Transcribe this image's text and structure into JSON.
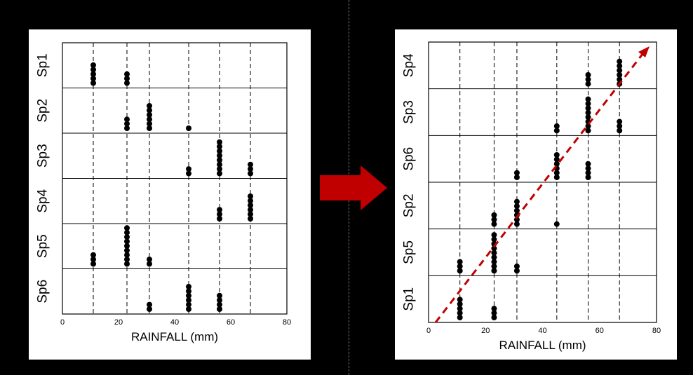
{
  "chart_data": [
    {
      "type": "scatter",
      "xlabel": "RAINFALL (mm)",
      "xlim": [
        0,
        80
      ],
      "xticks": [
        "0",
        "20",
        "40",
        "60",
        "80"
      ],
      "reference_lines_x": [
        11,
        23,
        31,
        45,
        56,
        67
      ],
      "rows": [
        {
          "label": "Sp1",
          "points": [
            {
              "x": 11,
              "count": 5
            },
            {
              "x": 23,
              "count": 3
            }
          ]
        },
        {
          "label": "Sp2",
          "points": [
            {
              "x": 23,
              "count": 3
            },
            {
              "x": 31,
              "count": 6
            },
            {
              "x": 45,
              "count": 1
            }
          ]
        },
        {
          "label": "Sp3",
          "points": [
            {
              "x": 45,
              "count": 2
            },
            {
              "x": 56,
              "count": 8
            },
            {
              "x": 67,
              "count": 3
            }
          ]
        },
        {
          "label": "Sp4",
          "points": [
            {
              "x": 56,
              "count": 3
            },
            {
              "x": 67,
              "count": 6
            }
          ]
        },
        {
          "label": "Sp5",
          "points": [
            {
              "x": 11,
              "count": 3
            },
            {
              "x": 23,
              "count": 9
            },
            {
              "x": 31,
              "count": 2
            }
          ]
        },
        {
          "label": "Sp6",
          "points": [
            {
              "x": 31,
              "count": 2
            },
            {
              "x": 45,
              "count": 6
            },
            {
              "x": 56,
              "count": 4
            }
          ]
        }
      ]
    },
    {
      "type": "scatter",
      "xlabel": "RAINFALL (mm)",
      "xlim": [
        0,
        80
      ],
      "xticks": [
        "0",
        "20",
        "40",
        "60",
        "80"
      ],
      "reference_lines_x": [
        11,
        23,
        31,
        45,
        56,
        67
      ],
      "trend_line": {
        "color": "#c00000",
        "style": "dashed",
        "direction": "rising"
      },
      "rows": [
        {
          "label": "Sp4",
          "points": [
            {
              "x": 56,
              "count": 3
            },
            {
              "x": 67,
              "count": 6
            }
          ]
        },
        {
          "label": "Sp3",
          "points": [
            {
              "x": 45,
              "count": 2
            },
            {
              "x": 56,
              "count": 8
            },
            {
              "x": 67,
              "count": 3
            }
          ]
        },
        {
          "label": "Sp6",
          "points": [
            {
              "x": 31,
              "count": 2
            },
            {
              "x": 45,
              "count": 6
            },
            {
              "x": 56,
              "count": 4
            }
          ]
        },
        {
          "label": "Sp2",
          "points": [
            {
              "x": 23,
              "count": 3
            },
            {
              "x": 31,
              "count": 6
            },
            {
              "x": 45,
              "count": 1
            }
          ]
        },
        {
          "label": "Sp5",
          "points": [
            {
              "x": 11,
              "count": 3
            },
            {
              "x": 23,
              "count": 9
            },
            {
              "x": 31,
              "count": 2
            }
          ]
        },
        {
          "label": "Sp1",
          "points": [
            {
              "x": 11,
              "count": 5
            },
            {
              "x": 23,
              "count": 3
            }
          ]
        }
      ]
    }
  ],
  "arrow": {
    "color": "#c00000"
  }
}
